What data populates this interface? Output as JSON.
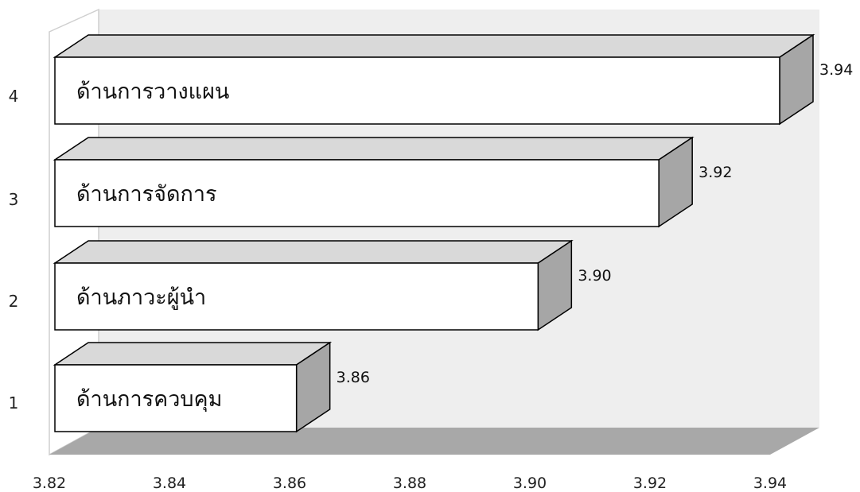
{
  "chart_data": {
    "type": "bar",
    "orientation": "horizontal",
    "style": "3d",
    "categories": [
      "1",
      "2",
      "3",
      "4"
    ],
    "bar_labels": [
      "ด้านการควบคุม",
      "ด้านภาวะผู้นำ",
      "ด้านการจัดการ",
      "ด้านการวางแผน"
    ],
    "values": [
      3.86,
      3.9,
      3.92,
      3.94
    ],
    "value_labels": [
      "3.86",
      "3.90",
      "3.92",
      "3.94"
    ],
    "xlim": [
      3.82,
      3.94
    ],
    "x_ticks": [
      "3.82",
      "3.84",
      "3.86",
      "3.88",
      "3.90",
      "3.92",
      "3.94"
    ],
    "title": "",
    "xlabel": "",
    "ylabel": "",
    "grid": false,
    "legend": "none",
    "colors": {
      "bar_front": "#ffffff",
      "bar_top": "#d9d9d9",
      "bar_side": "#a6a6a6",
      "back_wall": "#eeeeee",
      "floor": "#a8a8a8",
      "outline": "#000000"
    }
  }
}
